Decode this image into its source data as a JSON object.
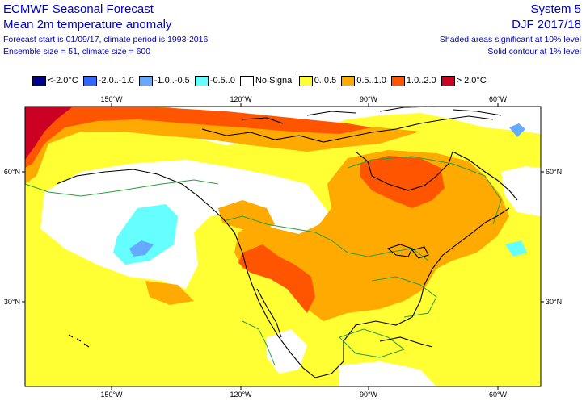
{
  "header": {
    "title": "ECMWF Seasonal Forecast",
    "subtitle": "Mean 2m temperature anomaly",
    "forecast_line": "Forecast start is 01/09/17, climate period is 1993-2016",
    "ensemble_line": "Ensemble size = 51, climate size = 600",
    "system": "System 5",
    "season": "DJF 2017/18",
    "sig10": "Shaded areas significant at 10% level",
    "sig1": "Solid contour at 1% level"
  },
  "legend": [
    {
      "label": "<-2.0°C",
      "color": "#00008b"
    },
    {
      "label": "-2.0..-1.0",
      "color": "#3366ff"
    },
    {
      "label": "-1.0..-0.5",
      "color": "#66aaff"
    },
    {
      "label": "-0.5..0",
      "color": "#66ffff"
    },
    {
      "label": "No Signal",
      "color": "#ffffff"
    },
    {
      "label": "0..0.5",
      "color": "#ffff33"
    },
    {
      "label": "0.5..1.0",
      "color": "#ffaa00"
    },
    {
      "label": "1.0..2.0",
      "color": "#ff5500"
    },
    {
      "label": "> 2.0°C",
      "color": "#cc0022"
    }
  ],
  "axes": {
    "lon_labels": [
      "150°W",
      "120°W",
      "90°W",
      "60°W"
    ],
    "lat_labels": [
      "60°N",
      "30°N"
    ]
  }
}
